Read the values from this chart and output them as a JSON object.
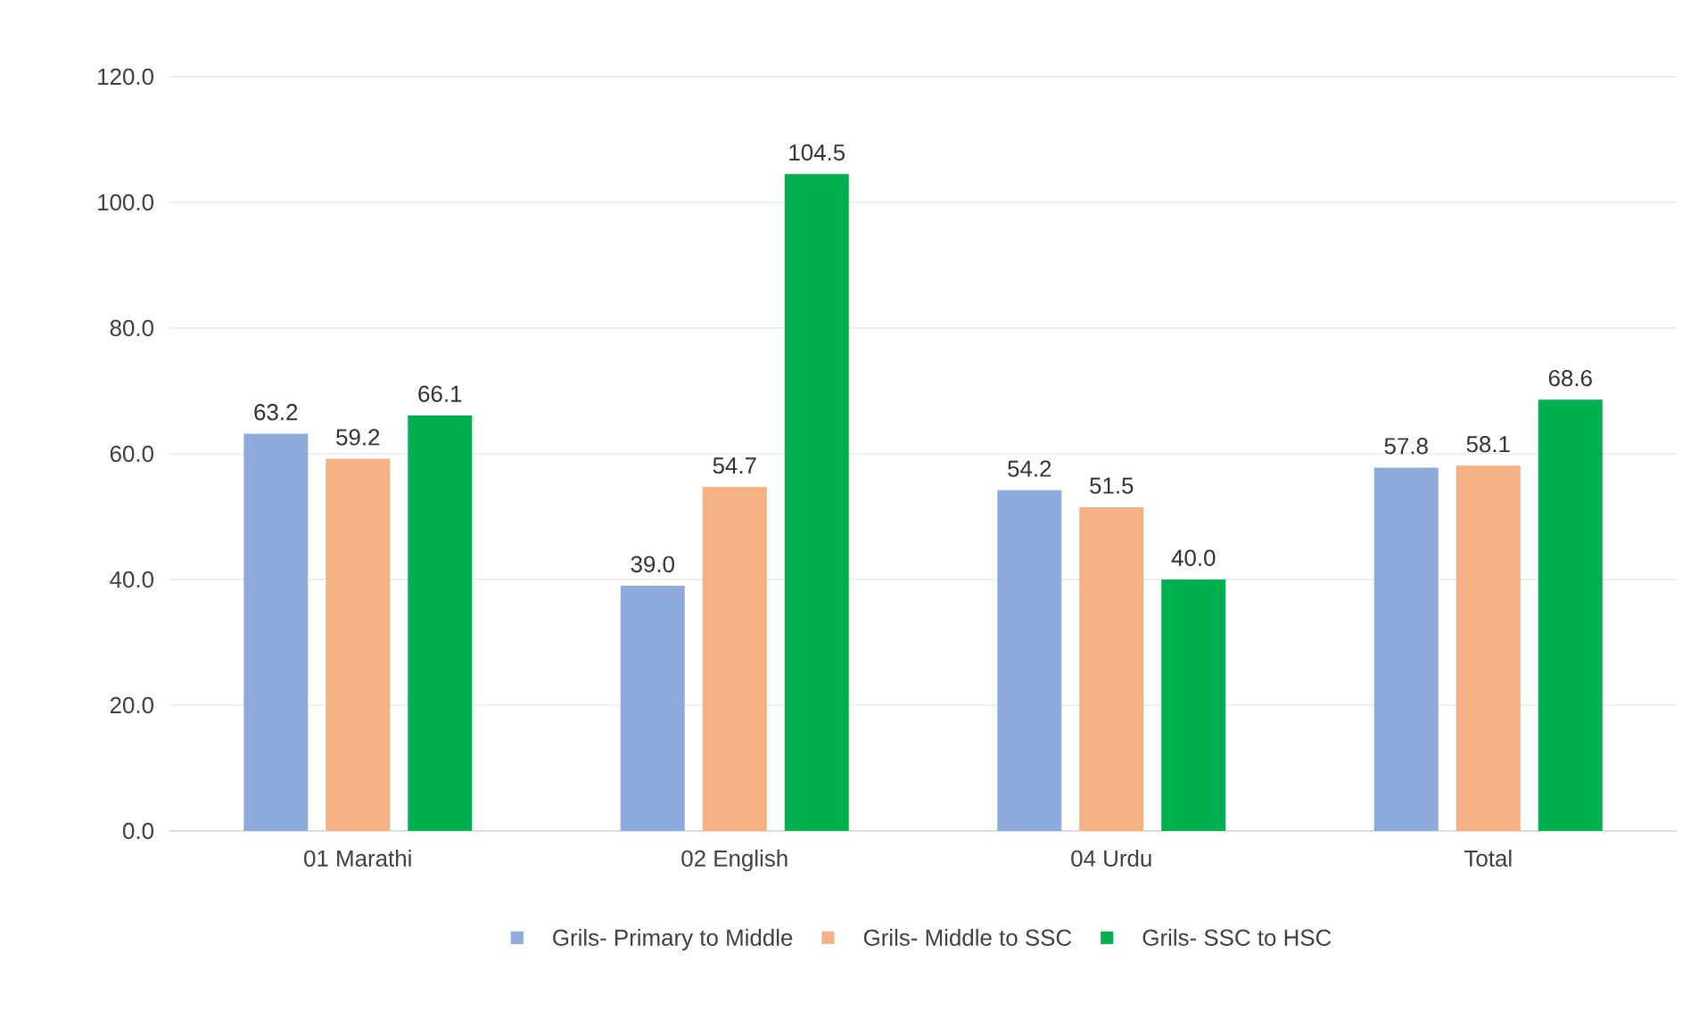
{
  "chart_data": {
    "type": "bar",
    "categories": [
      "01 Marathi",
      "02 English",
      "04 Urdu",
      "Total"
    ],
    "series": [
      {
        "name": "Grils- Primary to Middle",
        "color": "#8faadc",
        "values": [
          63.2,
          39.0,
          54.2,
          57.8
        ],
        "value_labels": [
          "63.2",
          "39.0",
          "54.2",
          "57.8"
        ]
      },
      {
        "name": "Grils- Middle to SSC",
        "color": "#f4b183",
        "values": [
          59.2,
          54.7,
          51.5,
          58.1
        ],
        "value_labels": [
          "59.2",
          "54.7",
          "51.5",
          "58.1"
        ]
      },
      {
        "name": "Grils- SSC to HSC",
        "color": "#00b050",
        "values": [
          66.1,
          104.5,
          40.0,
          68.6
        ],
        "value_labels": [
          "66.1",
          "104.5",
          "40.0",
          "68.6"
        ]
      }
    ],
    "ylim": [
      0,
      120
    ],
    "yticks": [
      {
        "value": 0,
        "label": "0.0"
      },
      {
        "value": 20,
        "label": "20.0"
      },
      {
        "value": 40,
        "label": "40.0"
      },
      {
        "value": 60,
        "label": "60.0"
      },
      {
        "value": 80,
        "label": "80.0"
      },
      {
        "value": 100,
        "label": "100.0"
      },
      {
        "value": 120,
        "label": "120.0"
      }
    ],
    "grid": "y",
    "legend": "bottom"
  }
}
